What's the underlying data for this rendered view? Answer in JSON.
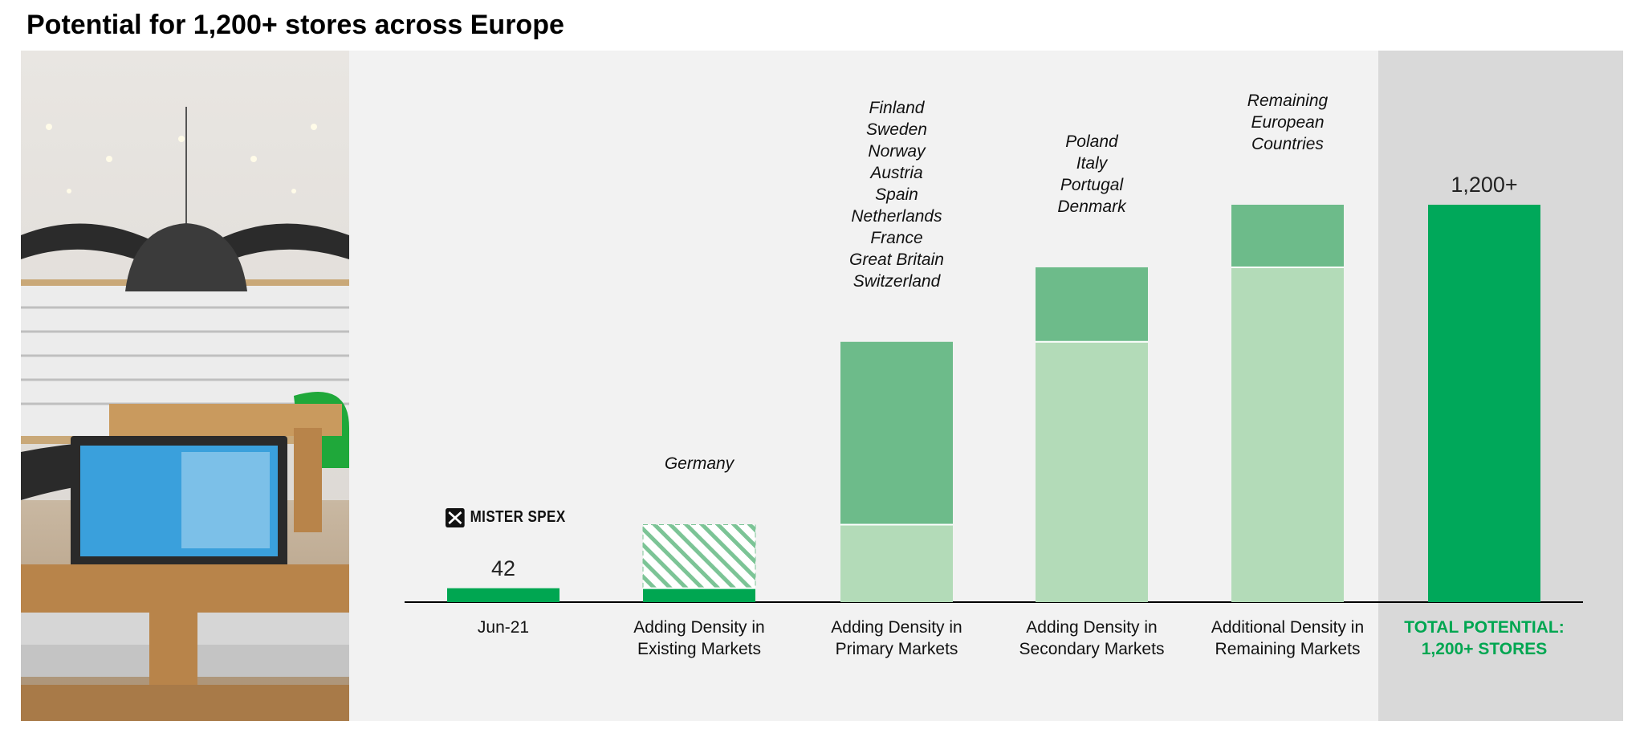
{
  "chart_data": {
    "type": "waterfall",
    "title": "Potential for 1,200+ stores across Europe",
    "logo_text": "MISTER SPEX",
    "categories": [
      "Jun-21",
      "Adding Density in Existing Markets",
      "Adding Density in Primary Markets",
      "Adding Density in Secondary Markets",
      "Additional Density in Remaining Markets",
      "TOTAL POTENTIAL: 1,200+ STORES"
    ],
    "values": [
      42,
      192,
      552,
      225,
      189,
      1200
    ],
    "value_labels": [
      "42",
      null,
      null,
      null,
      null,
      "1,200+"
    ],
    "annotations": [
      null,
      [
        "Germany"
      ],
      [
        "Finland",
        "Sweden",
        "Norway",
        "Austria",
        "Spain",
        "Netherlands",
        "France",
        "Great Britain",
        "Switzerland"
      ],
      [
        "Poland",
        "Italy",
        "Portugal",
        "Denmark"
      ],
      [
        "Remaining",
        "European",
        "Countries"
      ],
      null
    ],
    "styles": [
      "start",
      "hatched",
      "increase",
      "increase",
      "increase",
      "total"
    ],
    "colors": {
      "start": "#00a651",
      "increase": "#6dbb8a",
      "base": "#b3dbb8",
      "total": "#00a85a",
      "hatch": "#7cc496"
    }
  }
}
